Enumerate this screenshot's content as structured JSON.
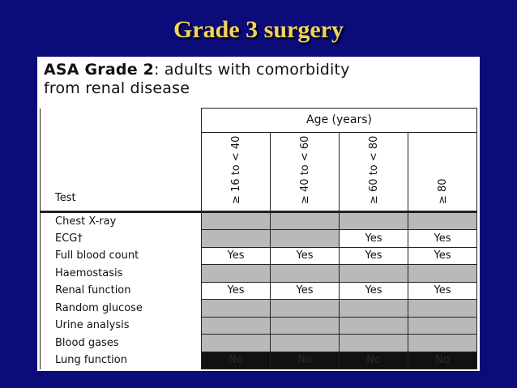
{
  "slide": {
    "title": "Grade 3 surgery"
  },
  "card": {
    "heading_bold": "ASA Grade 2",
    "heading_rest_line1": ": adults with comorbidity",
    "heading_line2": "from renal disease"
  },
  "table": {
    "group_header": "Age (years)",
    "test_header": "Test",
    "age_columns": [
      "≥ 16 to < 40",
      "≥ 40 to < 60",
      "≥ 60 to < 80",
      "≥ 80"
    ],
    "rows": [
      {
        "label": "Chest X-ray",
        "cells": [
          "",
          "",
          "",
          ""
        ],
        "shade": [
          "grey",
          "grey",
          "grey",
          "grey"
        ]
      },
      {
        "label": "ECG†",
        "cells": [
          "",
          "",
          "Yes",
          "Yes"
        ],
        "shade": [
          "grey",
          "grey",
          "white",
          "white"
        ]
      },
      {
        "label": "Full blood count",
        "cells": [
          "Yes",
          "Yes",
          "Yes",
          "Yes"
        ],
        "shade": [
          "white",
          "white",
          "white",
          "white"
        ]
      },
      {
        "label": "Haemostasis",
        "cells": [
          "",
          "",
          "",
          ""
        ],
        "shade": [
          "grey",
          "grey",
          "grey",
          "grey"
        ]
      },
      {
        "label": "Renal function",
        "cells": [
          "Yes",
          "Yes",
          "Yes",
          "Yes"
        ],
        "shade": [
          "white",
          "white",
          "white",
          "white"
        ]
      },
      {
        "label": "Random glucose",
        "cells": [
          "",
          "",
          "",
          ""
        ],
        "shade": [
          "grey",
          "grey",
          "grey",
          "grey"
        ]
      },
      {
        "label": "Urine analysis",
        "cells": [
          "",
          "",
          "",
          ""
        ],
        "shade": [
          "grey",
          "grey",
          "grey",
          "grey"
        ]
      },
      {
        "label": "Blood gases",
        "cells": [
          "",
          "",
          "",
          ""
        ],
        "shade": [
          "grey",
          "grey",
          "grey",
          "grey"
        ]
      },
      {
        "label": "Lung function",
        "cells": [
          "No",
          "No",
          "No",
          "No"
        ],
        "shade": [
          "black",
          "black",
          "black",
          "black"
        ]
      }
    ]
  },
  "colors": {
    "background": "#0b0b7a",
    "title": "#f2d45a",
    "grey_cell": "#b9b9b9",
    "black_cell": "#111111"
  }
}
